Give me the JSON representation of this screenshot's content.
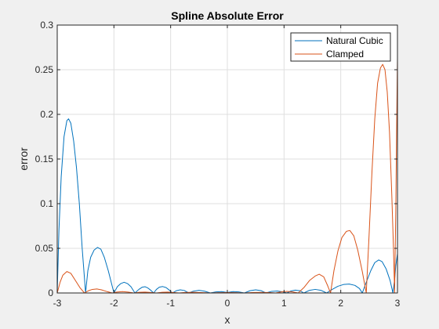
{
  "chart_data": {
    "type": "line",
    "title": "Spline Absolute Error",
    "xlabel": "x",
    "ylabel": "error",
    "xlim": [
      -3,
      3
    ],
    "ylim": [
      0,
      0.3
    ],
    "xticks": [
      -3,
      -2,
      -1,
      0,
      1,
      2,
      3
    ],
    "xtick_labels": [
      "-3",
      "-2",
      "-1",
      "0",
      "1",
      "2",
      "3"
    ],
    "yticks": [
      0,
      0.05,
      0.1,
      0.15,
      0.2,
      0.25,
      0.3
    ],
    "ytick_labels": [
      "0",
      "0.05",
      "0.1",
      "0.15",
      "0.2",
      "0.25",
      "0.3"
    ],
    "grid": true,
    "legend_location": "top-right",
    "series": [
      {
        "name": "Natural Cubic",
        "color": "#0072BD",
        "points": [
          [
            -3.0,
            0.0
          ],
          [
            -2.97,
            0.07
          ],
          [
            -2.93,
            0.13
          ],
          [
            -2.88,
            0.175
          ],
          [
            -2.83,
            0.193
          ],
          [
            -2.8,
            0.195
          ],
          [
            -2.76,
            0.19
          ],
          [
            -2.71,
            0.17
          ],
          [
            -2.66,
            0.14
          ],
          [
            -2.61,
            0.1
          ],
          [
            -2.56,
            0.05
          ],
          [
            -2.5,
            0.0
          ],
          [
            -2.46,
            0.025
          ],
          [
            -2.41,
            0.04
          ],
          [
            -2.35,
            0.048
          ],
          [
            -2.29,
            0.051
          ],
          [
            -2.23,
            0.049
          ],
          [
            -2.17,
            0.04
          ],
          [
            -2.1,
            0.025
          ],
          [
            -2.0,
            0.0
          ],
          [
            -1.94,
            0.007
          ],
          [
            -1.88,
            0.0105
          ],
          [
            -1.82,
            0.012
          ],
          [
            -1.76,
            0.0105
          ],
          [
            -1.7,
            0.007
          ],
          [
            -1.63,
            0.0
          ],
          [
            -1.56,
            0.004
          ],
          [
            -1.5,
            0.0065
          ],
          [
            -1.45,
            0.007
          ],
          [
            -1.4,
            0.0055
          ],
          [
            -1.35,
            0.003
          ],
          [
            -1.3,
            0.0
          ],
          [
            -1.25,
            0.004
          ],
          [
            -1.2,
            0.0065
          ],
          [
            -1.14,
            0.0072
          ],
          [
            -1.08,
            0.006
          ],
          [
            -1.02,
            0.003
          ],
          [
            -0.97,
            0.0
          ],
          [
            -0.9,
            0.0025
          ],
          [
            -0.83,
            0.0035
          ],
          [
            -0.76,
            0.0028
          ],
          [
            -0.68,
            0.0
          ],
          [
            -0.6,
            0.002
          ],
          [
            -0.5,
            0.003
          ],
          [
            -0.4,
            0.002
          ],
          [
            -0.3,
            0.0
          ],
          [
            -0.2,
            0.0012
          ],
          [
            -0.1,
            0.0015
          ],
          [
            0.0,
            0.0005
          ],
          [
            0.1,
            0.0015
          ],
          [
            0.2,
            0.0012
          ],
          [
            0.3,
            0.0
          ],
          [
            0.4,
            0.0025
          ],
          [
            0.5,
            0.0035
          ],
          [
            0.6,
            0.0025
          ],
          [
            0.68,
            0.0
          ],
          [
            0.78,
            0.0018
          ],
          [
            0.88,
            0.0022
          ],
          [
            0.98,
            0.0012
          ],
          [
            1.05,
            0.0
          ],
          [
            1.12,
            0.0022
          ],
          [
            1.2,
            0.0032
          ],
          [
            1.28,
            0.0025
          ],
          [
            1.35,
            0.0
          ],
          [
            1.45,
            0.003
          ],
          [
            1.55,
            0.004
          ],
          [
            1.65,
            0.003
          ],
          [
            1.75,
            0.0
          ],
          [
            1.85,
            0.004
          ],
          [
            1.95,
            0.0075
          ],
          [
            2.05,
            0.0095
          ],
          [
            2.15,
            0.01
          ],
          [
            2.25,
            0.0085
          ],
          [
            2.33,
            0.005
          ],
          [
            2.38,
            0.0
          ],
          [
            2.45,
            0.012
          ],
          [
            2.53,
            0.025
          ],
          [
            2.6,
            0.034
          ],
          [
            2.67,
            0.037
          ],
          [
            2.73,
            0.035
          ],
          [
            2.8,
            0.027
          ],
          [
            2.87,
            0.014
          ],
          [
            2.92,
            0.0
          ],
          [
            2.95,
            0.015
          ],
          [
            2.97,
            0.03
          ],
          [
            3.0,
            0.044
          ]
        ]
      },
      {
        "name": "Clamped",
        "color": "#D95319",
        "points": [
          [
            -3.0,
            0.0
          ],
          [
            -2.95,
            0.012
          ],
          [
            -2.9,
            0.02
          ],
          [
            -2.83,
            0.024
          ],
          [
            -2.76,
            0.022
          ],
          [
            -2.68,
            0.014
          ],
          [
            -2.6,
            0.006
          ],
          [
            -2.52,
            0.0
          ],
          [
            -2.45,
            0.0025
          ],
          [
            -2.38,
            0.004
          ],
          [
            -2.3,
            0.0045
          ],
          [
            -2.22,
            0.0035
          ],
          [
            -2.12,
            0.0015
          ],
          [
            -2.03,
            0.0
          ],
          [
            -1.95,
            0.001
          ],
          [
            -1.85,
            0.0015
          ],
          [
            -1.75,
            0.001
          ],
          [
            -1.65,
            0.0
          ],
          [
            -1.55,
            0.0008
          ],
          [
            -1.45,
            0.001
          ],
          [
            -1.35,
            0.0006
          ],
          [
            -1.25,
            0.0
          ],
          [
            -1.15,
            0.0008
          ],
          [
            -1.05,
            0.001
          ],
          [
            -0.95,
            0.0006
          ],
          [
            -0.85,
            0.0
          ],
          [
            -0.75,
            0.0005
          ],
          [
            -0.6,
            0.0008
          ],
          [
            -0.45,
            0.0004
          ],
          [
            -0.3,
            0.0
          ],
          [
            -0.15,
            0.0003
          ],
          [
            0.0,
            0.0004
          ],
          [
            0.15,
            0.0003
          ],
          [
            0.3,
            0.0
          ],
          [
            0.45,
            0.0005
          ],
          [
            0.6,
            0.0007
          ],
          [
            0.75,
            0.0004
          ],
          [
            0.85,
            0.0
          ],
          [
            0.95,
            0.0012
          ],
          [
            1.05,
            0.0018
          ],
          [
            1.15,
            0.0012
          ],
          [
            1.25,
            0.0
          ],
          [
            1.35,
            0.006
          ],
          [
            1.45,
            0.014
          ],
          [
            1.55,
            0.019
          ],
          [
            1.62,
            0.021
          ],
          [
            1.7,
            0.018
          ],
          [
            1.77,
            0.008
          ],
          [
            1.82,
            0.0
          ],
          [
            1.88,
            0.025
          ],
          [
            1.95,
            0.047
          ],
          [
            2.02,
            0.062
          ],
          [
            2.1,
            0.069
          ],
          [
            2.16,
            0.07
          ],
          [
            2.23,
            0.064
          ],
          [
            2.3,
            0.048
          ],
          [
            2.38,
            0.024
          ],
          [
            2.45,
            0.0
          ],
          [
            2.5,
            0.065
          ],
          [
            2.55,
            0.135
          ],
          [
            2.6,
            0.195
          ],
          [
            2.65,
            0.235
          ],
          [
            2.7,
            0.252
          ],
          [
            2.74,
            0.256
          ],
          [
            2.78,
            0.25
          ],
          [
            2.82,
            0.225
          ],
          [
            2.86,
            0.18
          ],
          [
            2.9,
            0.11
          ],
          [
            2.93,
            0.05
          ],
          [
            2.95,
            0.0
          ],
          [
            2.97,
            0.09
          ],
          [
            2.985,
            0.18
          ],
          [
            3.0,
            0.263
          ]
        ]
      }
    ]
  }
}
